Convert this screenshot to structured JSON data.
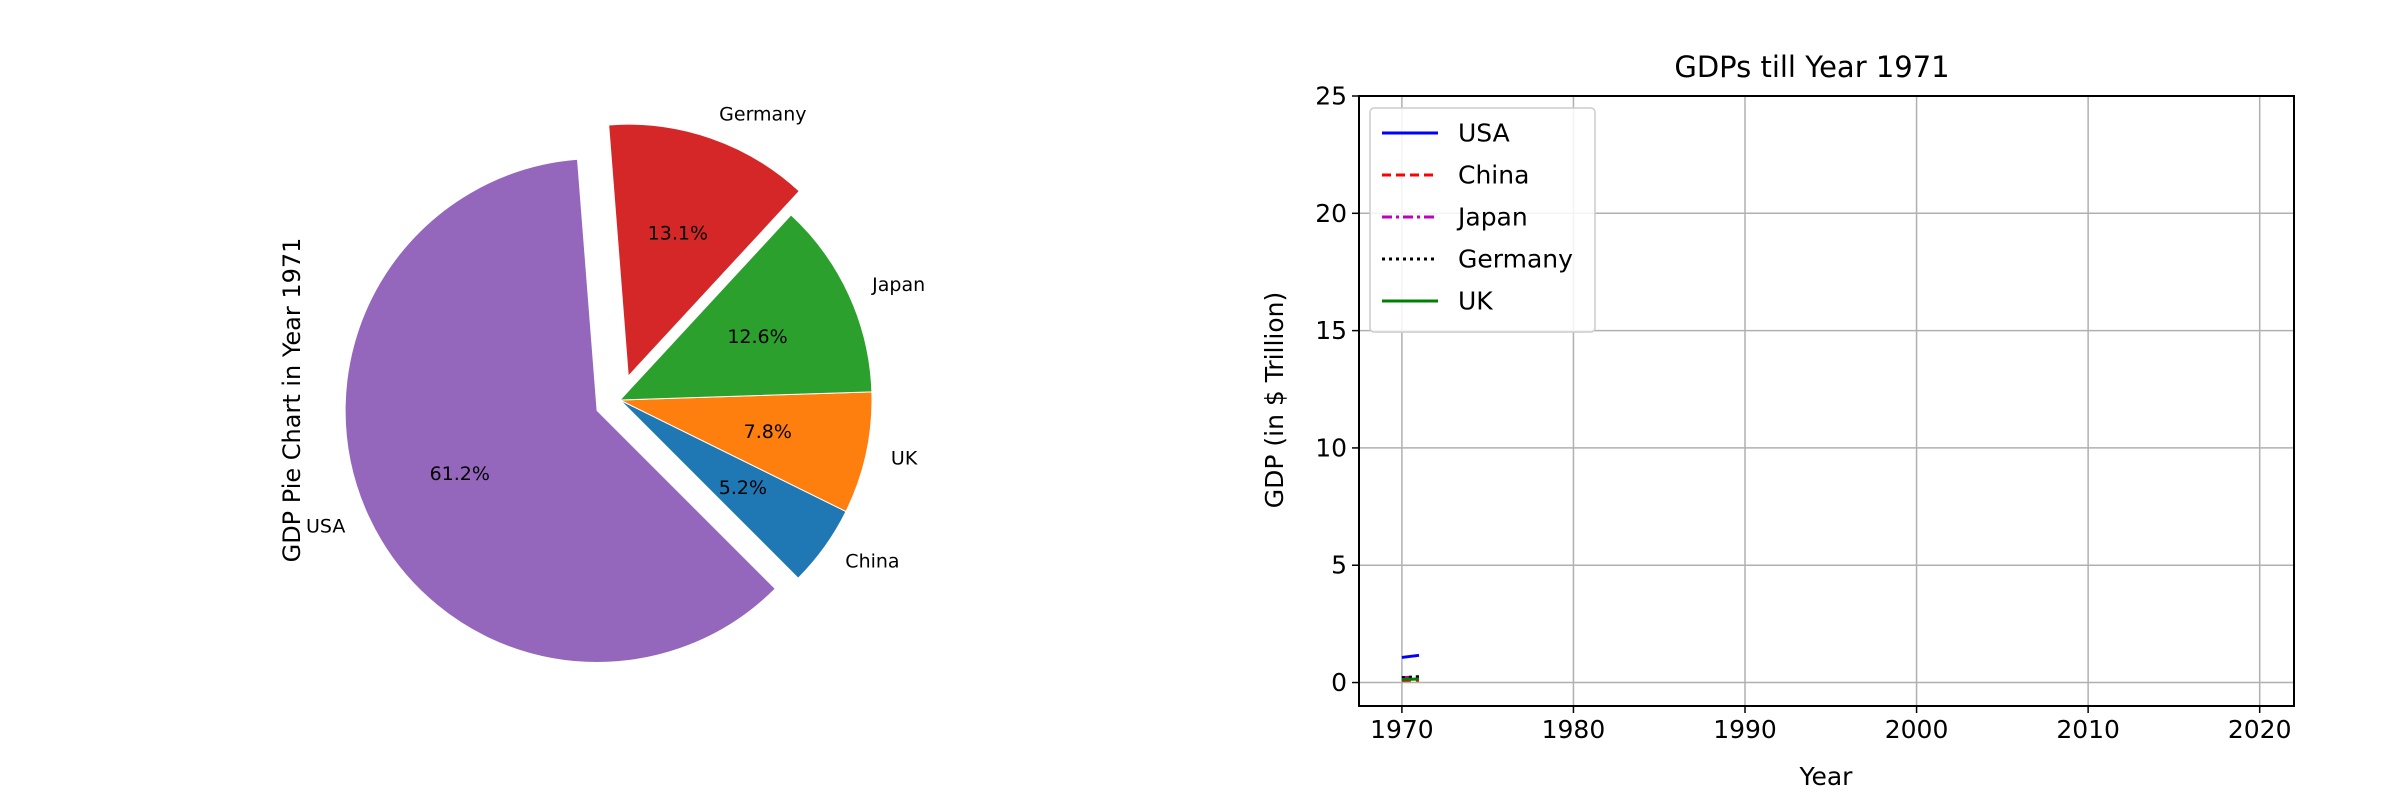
{
  "chart_data": [
    {
      "type": "pie",
      "ylabel": "GDP Pie Chart in Year 1971",
      "slices": [
        {
          "label": "China",
          "value": 5.2,
          "pct_label": "5.2%",
          "color": "#1f77b4",
          "explode": false
        },
        {
          "label": "UK",
          "value": 7.8,
          "pct_label": "7.8%",
          "color": "#ff7f0e",
          "explode": false
        },
        {
          "label": "Japan",
          "value": 12.6,
          "pct_label": "12.6%",
          "color": "#2ca02c",
          "explode": false
        },
        {
          "label": "Germany",
          "value": 13.1,
          "pct_label": "13.1%",
          "color": "#d62728",
          "explode": true
        },
        {
          "label": "USA",
          "value": 61.2,
          "pct_label": "61.2%",
          "color": "#9467bd",
          "explode": true
        }
      ],
      "start_angle_deg": -45,
      "direction": "counterclockwise"
    },
    {
      "type": "line",
      "title": "GDPs till Year 1971",
      "xlabel": "Year",
      "ylabel": "GDP (in $ Trillion)",
      "xlim": [
        1967.5,
        2022
      ],
      "ylim": [
        -1,
        25
      ],
      "xticks": [
        "1970",
        "1980",
        "1990",
        "2000",
        "2010",
        "2020"
      ],
      "yticks": [
        "0",
        "5",
        "10",
        "15",
        "20",
        "25"
      ],
      "grid": true,
      "legend_position": "upper-left",
      "x": [
        1970,
        1971
      ],
      "series": [
        {
          "name": "USA",
          "values": [
            1.07,
            1.16
          ],
          "color": "#0000ff",
          "dash": "solid"
        },
        {
          "name": "China",
          "values": [
            0.09,
            0.1
          ],
          "color": "#ff0000",
          "dash": "dashed"
        },
        {
          "name": "Japan",
          "values": [
            0.21,
            0.24
          ],
          "color": "#bf00bf",
          "dash": "dashdot"
        },
        {
          "name": "Germany",
          "values": [
            0.21,
            0.25
          ],
          "color": "#000000",
          "dash": "dotted"
        },
        {
          "name": "UK",
          "values": [
            0.13,
            0.15
          ],
          "color": "#008000",
          "dash": "solid"
        }
      ]
    }
  ]
}
